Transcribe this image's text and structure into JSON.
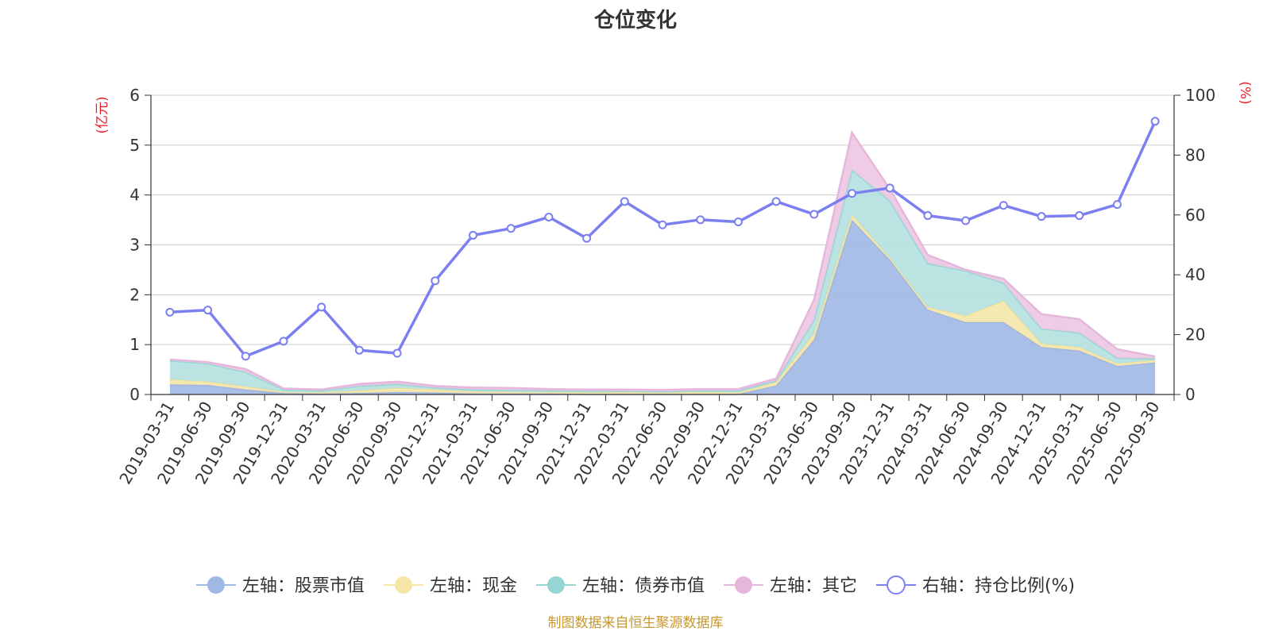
{
  "chart_data": {
    "type": "area",
    "title": "仓位变化",
    "left_axis": {
      "unit": "(亿元)",
      "ticks": [
        "0",
        "1",
        "2",
        "3",
        "4",
        "5",
        "6"
      ],
      "ylim": [
        0,
        6
      ]
    },
    "right_axis": {
      "unit": "(%)",
      "ticks": [
        "0",
        "20",
        "40",
        "60",
        "80",
        "100"
      ],
      "ylim": [
        0,
        100
      ]
    },
    "categories": [
      "2019-03-31",
      "2019-06-30",
      "2019-09-30",
      "2019-12-31",
      "2020-03-31",
      "2020-06-30",
      "2020-09-30",
      "2020-12-31",
      "2021-03-31",
      "2021-06-30",
      "2021-09-30",
      "2021-12-31",
      "2022-03-31",
      "2022-06-30",
      "2022-09-30",
      "2022-12-31",
      "2023-03-31",
      "2023-06-30",
      "2023-09-30",
      "2023-12-31",
      "2024-03-31",
      "2024-06-30",
      "2024-09-30",
      "2024-12-31",
      "2025-03-31",
      "2025-06-30",
      "2025-09-30"
    ],
    "series": [
      {
        "name": "左轴：股票市值",
        "axis": "left",
        "color": "#a0b8e4",
        "stroke": "#9ab3e0",
        "values": [
          0.2,
          0.19,
          0.1,
          0.03,
          0.02,
          0.03,
          0.05,
          0.04,
          0.02,
          0.02,
          0.02,
          0.01,
          0.01,
          0.01,
          0.01,
          0.01,
          0.18,
          1.1,
          3.5,
          2.7,
          1.7,
          1.45,
          1.45,
          0.95,
          0.88,
          0.57,
          0.64
        ]
      },
      {
        "name": "左轴：现金",
        "axis": "left",
        "color": "#f5e6a8",
        "stroke": "#f2e29e",
        "values": [
          0.1,
          0.07,
          0.06,
          0.02,
          0.02,
          0.05,
          0.08,
          0.06,
          0.04,
          0.03,
          0.03,
          0.03,
          0.04,
          0.03,
          0.04,
          0.03,
          0.07,
          0.12,
          0.1,
          0.04,
          0.05,
          0.13,
          0.43,
          0.07,
          0.07,
          0.05,
          0.05
        ]
      },
      {
        "name": "左轴：债券市值",
        "axis": "left",
        "color": "#b2e0df",
        "stroke": "#95d6d4",
        "values": [
          0.38,
          0.36,
          0.29,
          0.05,
          0.04,
          0.09,
          0.08,
          0.04,
          0.04,
          0.04,
          0.03,
          0.03,
          0.02,
          0.02,
          0.03,
          0.04,
          0.03,
          0.28,
          0.9,
          1.15,
          0.88,
          0.9,
          0.36,
          0.3,
          0.29,
          0.11,
          0.03
        ]
      },
      {
        "name": "左轴：其它",
        "axis": "left",
        "color": "#ecc6e2",
        "stroke": "#e5b7dc",
        "values": [
          0.02,
          0.03,
          0.06,
          0.02,
          0.02,
          0.04,
          0.05,
          0.03,
          0.04,
          0.04,
          0.03,
          0.03,
          0.03,
          0.03,
          0.03,
          0.03,
          0.04,
          0.4,
          0.75,
          0.23,
          0.17,
          0.02,
          0.08,
          0.29,
          0.27,
          0.18,
          0.04
        ]
      },
      {
        "name": "右轴：持仓比例(%)",
        "axis": "right",
        "type": "line",
        "color": "#7b7ff0",
        "values": [
          27.5,
          28.2,
          12.8,
          17.8,
          29.2,
          14.8,
          13.8,
          38.0,
          53.2,
          55.5,
          59.3,
          52.2,
          64.5,
          56.7,
          58.4,
          57.7,
          64.5,
          60.2,
          67.2,
          69.0,
          59.8,
          58.1,
          63.2,
          59.5,
          59.8,
          63.5,
          91.3
        ]
      }
    ]
  },
  "legend": [
    {
      "label": "左轴：股票市值",
      "color": "#a0b8e4",
      "icon": "filled-circle"
    },
    {
      "label": "左轴：现金",
      "color": "#f5e6a8",
      "icon": "filled-circle"
    },
    {
      "label": "左轴：债券市值",
      "color": "#95d6d4",
      "icon": "filled-circle"
    },
    {
      "label": "左轴：其它",
      "color": "#e5b7dc",
      "icon": "filled-circle"
    },
    {
      "label": "右轴：持仓比例(%)",
      "color": "#7b7ff0",
      "icon": "hollow-circle"
    }
  ],
  "source": "制图数据来自恒生聚源数据库",
  "colors": {
    "unit_label": "#e8202a",
    "source_text": "#c9972e",
    "axis": "#333333",
    "grid": "#cccccc"
  }
}
